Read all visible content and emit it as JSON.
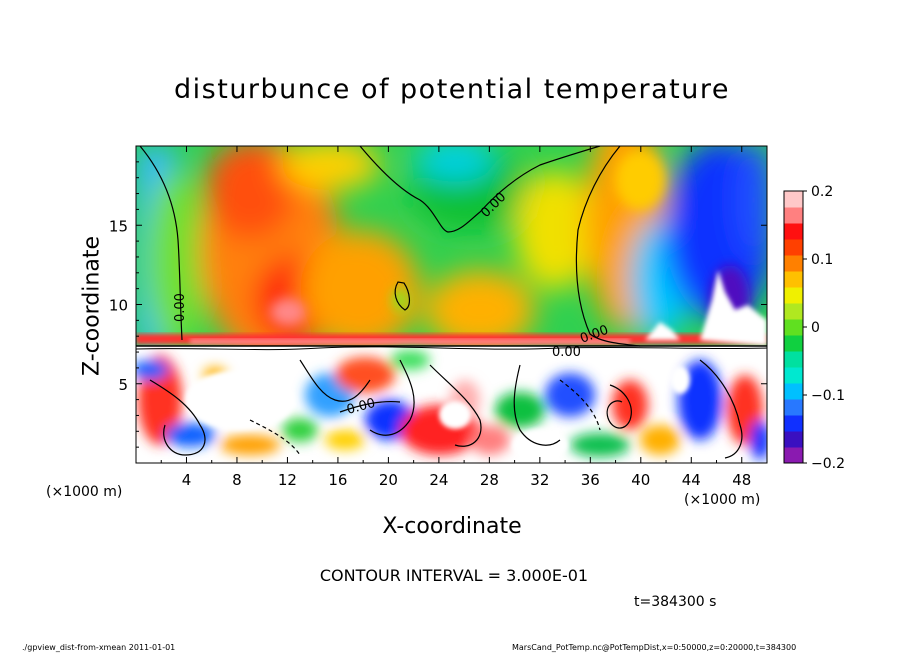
{
  "title": "disturbunce of potential temperature",
  "contour_interval": "CONTOUR INTERVAL = 3.000E-01",
  "time_label": "t=384300 s",
  "footer": {
    "left": "./gpview_dist-from-xmean  2011-01-01",
    "right": "MarsCand_PotTemp.nc@PotTempDist,x=0:50000,z=0:20000,t=384300"
  },
  "chart_data": {
    "type": "heatmap",
    "title": "disturbunce of potential temperature",
    "xlabel": "X-coordinate",
    "ylabel": "Z-coordinate",
    "x_unit": "(×1000 m)",
    "x_unit_right": "(×1000 m)",
    "xlim": [
      0,
      50
    ],
    "ylim": [
      0,
      20
    ],
    "x_ticks": [
      4,
      8,
      12,
      16,
      20,
      24,
      28,
      32,
      36,
      40,
      44,
      48
    ],
    "y_ticks": [
      5,
      10,
      15
    ],
    "colorbar": {
      "range": [
        -0.2,
        0.2
      ],
      "ticks": [
        {
          "value": 0.2,
          "label": "0.2"
        },
        {
          "value": 0.1,
          "label": "0.1"
        },
        {
          "value": 0.0,
          "label": "0"
        },
        {
          "value": -0.1,
          "label": "−0.1"
        },
        {
          "value": -0.2,
          "label": "−0.2"
        }
      ],
      "colors": [
        "#8a1ab0",
        "#3a10c0",
        "#1030ff",
        "#2878ff",
        "#00c0ff",
        "#00e8d0",
        "#00e0a0",
        "#10d040",
        "#60e020",
        "#b0e820",
        "#f0f000",
        "#ffc000",
        "#ff8000",
        "#ff4000",
        "#ff1010",
        "#ff8080",
        "#ffc8c8"
      ]
    },
    "contour_labels": [
      "0.00",
      "0.00",
      "0.00",
      "0.00",
      "0.00"
    ]
  }
}
